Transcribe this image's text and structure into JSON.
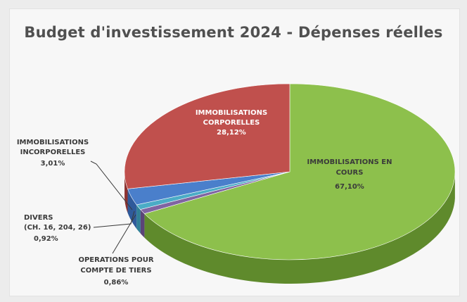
{
  "chart_data": {
    "type": "pie",
    "title": "Budget d'investissement 2024 - Dépenses réelles",
    "slices": [
      {
        "label": "IMMOBILISATIONS EN COURS",
        "value": 67.1,
        "value_label": "67,10%",
        "color": "#8dc04c",
        "side_color": "#5f8a2c"
      },
      {
        "label": "OPERATIONS POUR COMPTE DE TIERS",
        "value": 0.86,
        "value_label": "0,86%",
        "color": "#8064a2",
        "side_color": "#5b4478"
      },
      {
        "label": "DIVERS (CH. 16, 204, 26)",
        "value": 0.92,
        "value_label": "0,92%",
        "color": "#4bacc6",
        "side_color": "#2f7f96"
      },
      {
        "label": "IMMOBILISATIONS INCORPORELLES",
        "value": 3.01,
        "value_label": "3,01%",
        "color": "#4a7fcb",
        "side_color": "#2f5a9a"
      },
      {
        "label": "IMMOBILISATIONS CORPORELLES",
        "value": 28.12,
        "value_label": "28,12%",
        "color": "#c0504d",
        "side_color": "#8c3230"
      }
    ],
    "labels": {
      "en_cours": {
        "line1": "IMMOBILISATIONS EN",
        "line2": "COURS",
        "value": "67,10%"
      },
      "corporelles": {
        "line1": "IMMOBILISATIONS",
        "line2": "CORPORELLES",
        "value": "28,12%"
      },
      "incorporelles": {
        "line1": "IMMOBILISATIONS",
        "line2": "INCORPORELLES",
        "value": "3,01%"
      },
      "divers": {
        "line1": "DIVERS",
        "line2": "(CH. 16, 204, 26)",
        "value": "0,92%"
      },
      "tiers": {
        "line1": "OPERATIONS POUR",
        "line2": "COMPTE DE TIERS",
        "value": "0,86%"
      }
    },
    "legend": "none"
  }
}
